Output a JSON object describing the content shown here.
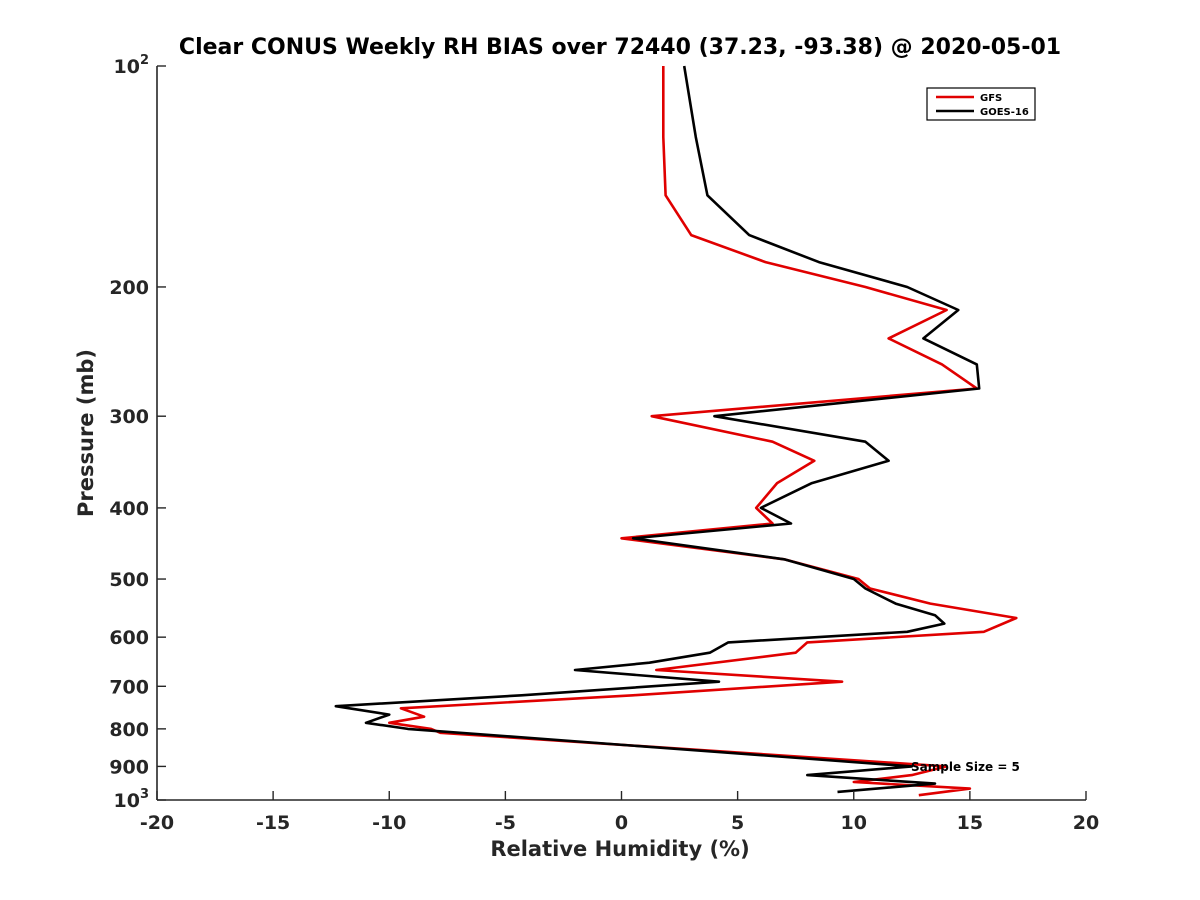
{
  "chart_data": {
    "type": "line",
    "title": "Clear CONUS Weekly RH BIAS over 72440 (37.23, -93.38) @ 2020-05-01",
    "xlabel": "Relative Humidity (%)",
    "ylabel": "Pressure (mb)",
    "xlim": [
      -20,
      20
    ],
    "ylim": [
      100,
      1000
    ],
    "yscale": "log",
    "y_reversed": true,
    "x_ticks": [
      -20,
      -15,
      -10,
      -5,
      0,
      5,
      10,
      15,
      20
    ],
    "x_tick_labels": [
      "-20",
      "-15",
      "-10",
      "-5",
      "0",
      "5",
      "10",
      "15",
      "20"
    ],
    "y_ticks": [
      100,
      200,
      300,
      400,
      500,
      600,
      700,
      800,
      900,
      1000
    ],
    "y_tick_labels": [
      {
        "base": "10",
        "exp": "2"
      },
      {
        "base": "200",
        "exp": ""
      },
      {
        "base": "300",
        "exp": ""
      },
      {
        "base": "400",
        "exp": ""
      },
      {
        "base": "500",
        "exp": ""
      },
      {
        "base": "600",
        "exp": ""
      },
      {
        "base": "700",
        "exp": ""
      },
      {
        "base": "800",
        "exp": ""
      },
      {
        "base": "900",
        "exp": ""
      },
      {
        "base": "10",
        "exp": "3"
      }
    ],
    "grid": false,
    "legend_position": "top-right",
    "annotation": "Sample Size = 5",
    "annotation_at": {
      "x": 12.5,
      "y": 900
    },
    "series": [
      {
        "name": "GFS",
        "color": "#e00000",
        "points": [
          [
            1.8,
            100
          ],
          [
            1.8,
            125
          ],
          [
            1.9,
            150
          ],
          [
            3.0,
            170
          ],
          [
            6.2,
            185
          ],
          [
            10.5,
            200
          ],
          [
            14.0,
            215
          ],
          [
            11.5,
            235
          ],
          [
            13.8,
            255
          ],
          [
            15.3,
            275
          ],
          [
            1.3,
            300
          ],
          [
            6.5,
            325
          ],
          [
            8.3,
            345
          ],
          [
            6.7,
            370
          ],
          [
            5.8,
            400
          ],
          [
            6.5,
            420
          ],
          [
            0.0,
            440
          ],
          [
            7.0,
            470
          ],
          [
            10.2,
            500
          ],
          [
            10.7,
            515
          ],
          [
            13.3,
            540
          ],
          [
            17.0,
            565
          ],
          [
            15.6,
            590
          ],
          [
            8.0,
            610
          ],
          [
            7.5,
            630
          ],
          [
            1.5,
            665
          ],
          [
            9.5,
            690
          ],
          [
            0.5,
            720
          ],
          [
            -9.5,
            750
          ],
          [
            -8.5,
            770
          ],
          [
            -10.0,
            785
          ],
          [
            -8.2,
            800
          ],
          [
            -7.8,
            810
          ],
          [
            14.0,
            900
          ],
          [
            12.5,
            925
          ],
          [
            10.0,
            945
          ],
          [
            15.0,
            965
          ],
          [
            12.8,
            985
          ]
        ]
      },
      {
        "name": "GOES-16",
        "color": "#000000",
        "points": [
          [
            2.7,
            100
          ],
          [
            3.2,
            125
          ],
          [
            3.7,
            150
          ],
          [
            5.5,
            170
          ],
          [
            8.5,
            185
          ],
          [
            12.3,
            200
          ],
          [
            14.5,
            215
          ],
          [
            13.0,
            235
          ],
          [
            15.3,
            255
          ],
          [
            15.4,
            275
          ],
          [
            4.0,
            300
          ],
          [
            10.5,
            325
          ],
          [
            11.5,
            345
          ],
          [
            8.2,
            370
          ],
          [
            6.0,
            400
          ],
          [
            7.3,
            420
          ],
          [
            0.5,
            440
          ],
          [
            7.0,
            470
          ],
          [
            10.0,
            500
          ],
          [
            10.5,
            515
          ],
          [
            11.8,
            540
          ],
          [
            13.5,
            560
          ],
          [
            13.9,
            575
          ],
          [
            12.3,
            590
          ],
          [
            4.6,
            610
          ],
          [
            3.8,
            630
          ],
          [
            1.2,
            650
          ],
          [
            -2.0,
            665
          ],
          [
            4.2,
            690
          ],
          [
            -4.3,
            720
          ],
          [
            -12.3,
            745
          ],
          [
            -10.0,
            765
          ],
          [
            -11.0,
            785
          ],
          [
            -9.2,
            800
          ],
          [
            12.5,
            900
          ],
          [
            8.0,
            925
          ],
          [
            13.5,
            950
          ],
          [
            9.3,
            975
          ]
        ]
      }
    ]
  }
}
